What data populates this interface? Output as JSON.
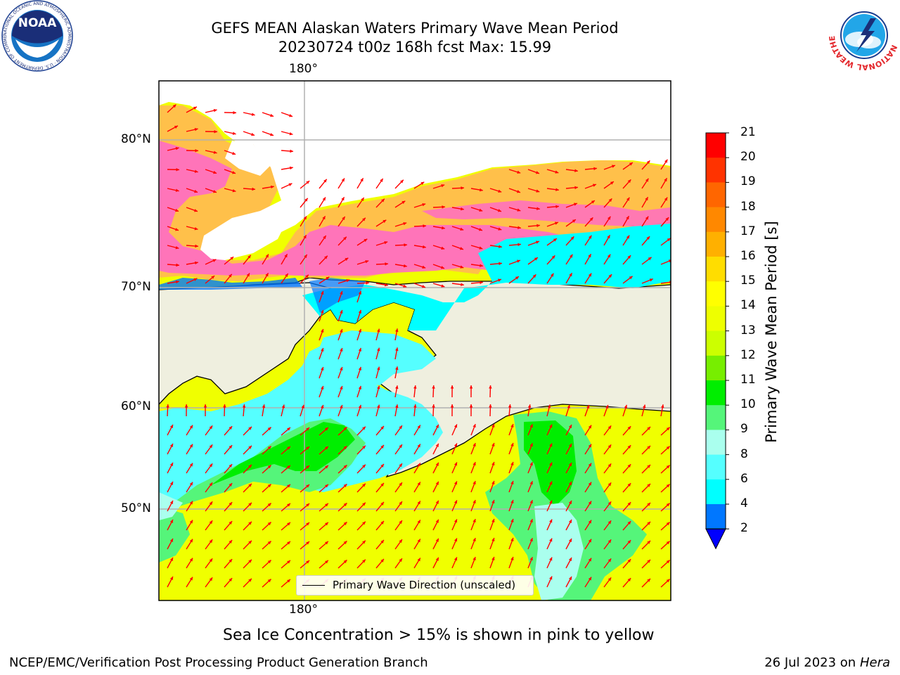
{
  "header": {
    "title_line1": "GEFS MEAN Alaskan Waters Primary Wave Mean Period",
    "title_line2": "20230724 t00z 168h fcst   Max: 15.99"
  },
  "map": {
    "lon_labels": [
      "180°",
      "180°"
    ],
    "lat_labels": [
      "80°N",
      "70°N",
      "60°N",
      "50°N"
    ],
    "legend_label": "Primary Wave Direction (unscaled)",
    "colors": {
      "land": "#efefdf",
      "ice_pink": "#ff66cc",
      "ice_orange": "#ffc04a",
      "open_ice": "#ffffff",
      "arrow": "#ff0000",
      "gridline": "#b0b0b0"
    }
  },
  "colorbar": {
    "title": "Primary Wave Mean Period [s]",
    "ticks": [
      "21",
      "20",
      "19",
      "18",
      "17",
      "16",
      "15",
      "14",
      "13",
      "12",
      "11",
      "10",
      "9",
      "8",
      "6",
      "4",
      "2"
    ],
    "band_colors": [
      "#ff0000",
      "#ff3300",
      "#ff6600",
      "#ff8800",
      "#ffb000",
      "#ffdd00",
      "#ffff00",
      "#eeff00",
      "#ccff00",
      "#77ee00",
      "#00ee00",
      "#55f57a",
      "#aaffee",
      "#55ffff",
      "#00ffff",
      "#0077ff"
    ],
    "extend_color": "#0000ff"
  },
  "footnote": "Sea Ice Concentration > 15% is shown in pink to yellow",
  "footer": {
    "left": "NCEP/EMC/Verification Post Processing Product Generation Branch",
    "right_prefix": "26 Jul 2023 on ",
    "right_machine": "Hera"
  },
  "logos": {
    "noaa_label": "NOAA",
    "noaa_ring_text": "NATIONAL OCEANIC AND ATMOSPHERIC ADMINISTRATION · U.S. DEPARTMENT OF COMMERCE",
    "nws_ring_text": "NATIONAL WEATHER SERVICE"
  }
}
